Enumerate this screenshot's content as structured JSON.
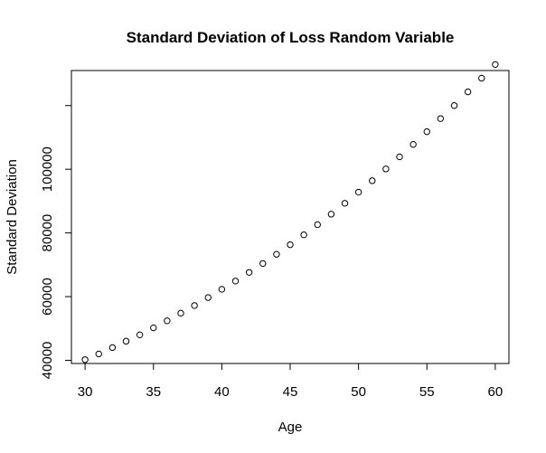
{
  "chart_data": {
    "type": "scatter",
    "title": "Standard Deviation of Loss Random Variable",
    "xlabel": "Age",
    "ylabel": "Standard Deviation",
    "xlim": [
      29,
      61
    ],
    "ylim": [
      39000,
      131000
    ],
    "xticks": [
      30,
      35,
      40,
      45,
      50,
      55,
      60
    ],
    "yticks": [
      40000,
      60000,
      80000,
      100000,
      120000
    ],
    "ytick_labels": [
      "40000",
      "60000",
      "80000",
      "100000",
      ""
    ],
    "grid": false,
    "marker": "open-circle",
    "x": [
      30,
      31,
      32,
      33,
      34,
      35,
      36,
      37,
      38,
      39,
      40,
      41,
      42,
      43,
      44,
      45,
      46,
      47,
      48,
      49,
      50,
      51,
      52,
      53,
      54,
      55,
      56,
      57,
      58,
      59,
      60
    ],
    "y": [
      40200,
      42000,
      44000,
      46000,
      48000,
      50200,
      52400,
      54800,
      57200,
      59700,
      62300,
      64900,
      67600,
      70400,
      73300,
      76300,
      79400,
      82600,
      85900,
      89300,
      92800,
      96400,
      100100,
      103900,
      107800,
      111800,
      115900,
      120000,
      124300,
      128600,
      132900
    ]
  }
}
